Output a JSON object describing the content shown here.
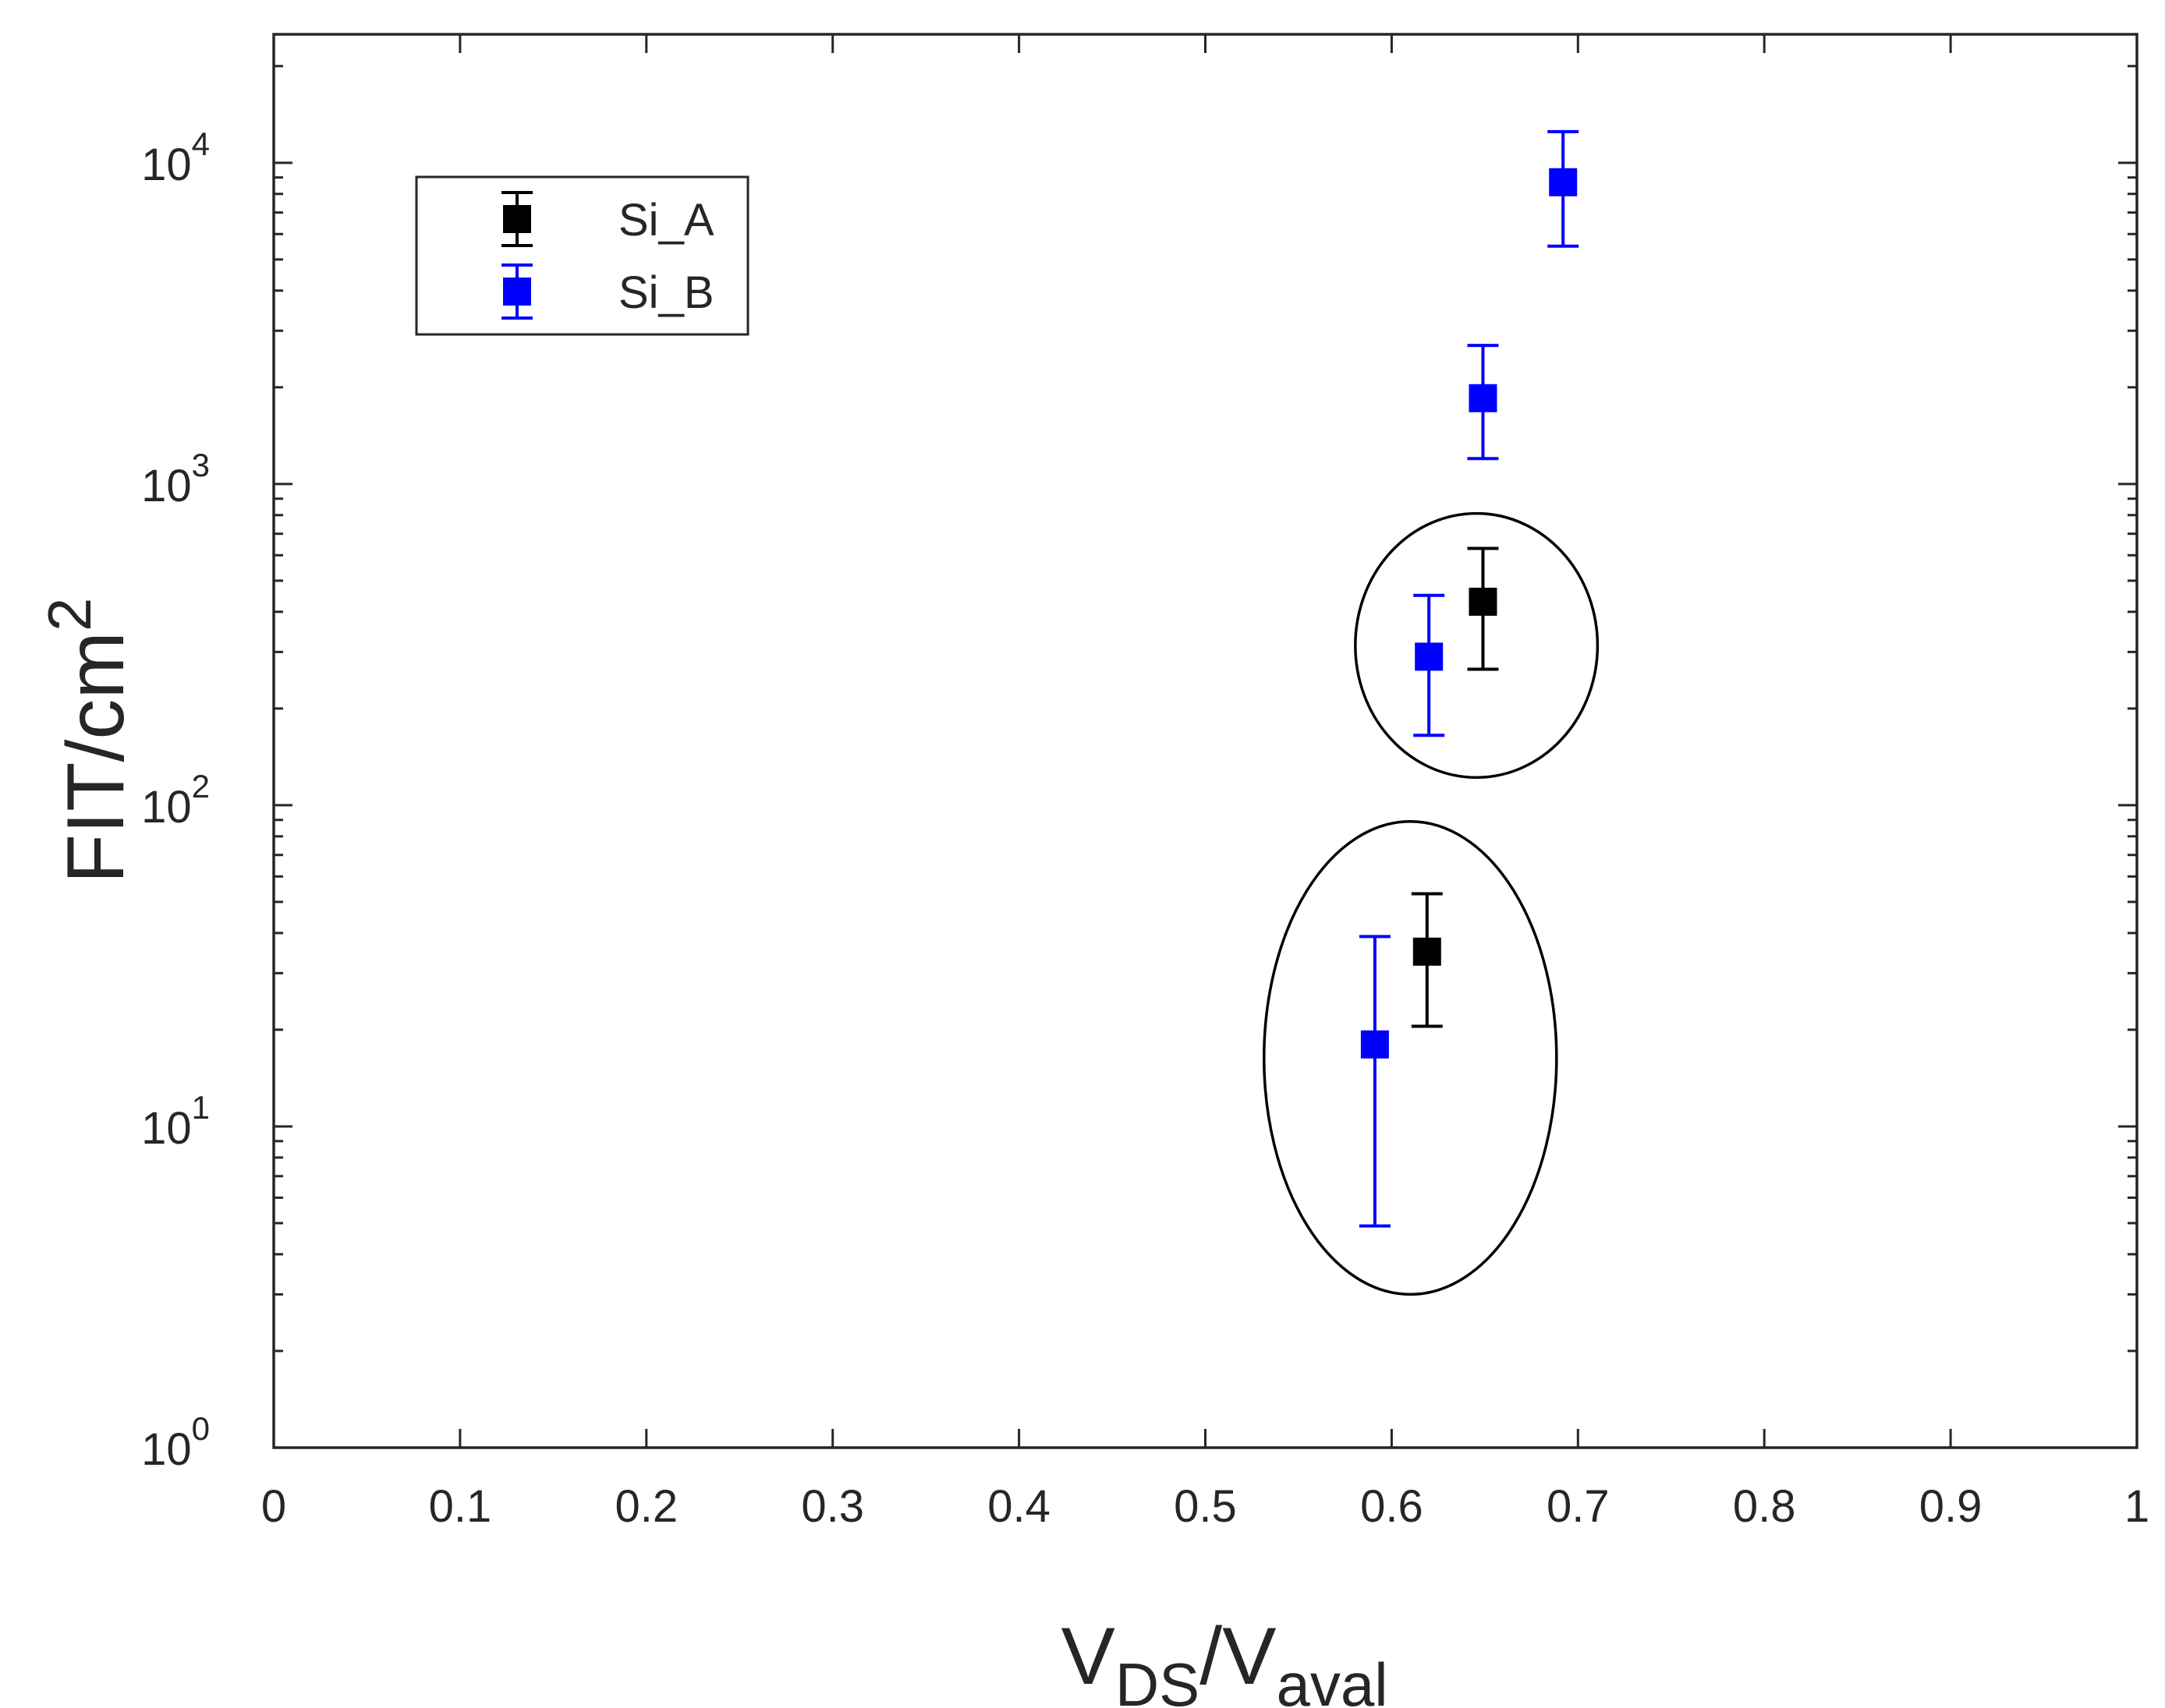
{
  "chart_data": {
    "type": "scatter",
    "title": "",
    "xlabel": {
      "main": "V",
      "sub1": "DS",
      "sep": "/V",
      "sub2": "aval"
    },
    "ylabel": {
      "main": "FIT/cm",
      "sup": "2"
    },
    "xscale": "linear",
    "yscale": "log",
    "xlim": [
      0,
      1
    ],
    "ylim_exp": [
      0,
      4.4
    ],
    "xticks": [
      "0",
      "0.1",
      "0.2",
      "0.3",
      "0.4",
      "0.5",
      "0.6",
      "0.7",
      "0.8",
      "0.9",
      "1"
    ],
    "yticks": [
      {
        "base": "10",
        "exp": "0"
      },
      {
        "base": "10",
        "exp": "1"
      },
      {
        "base": "10",
        "exp": "2"
      },
      {
        "base": "10",
        "exp": "3"
      },
      {
        "base": "10",
        "exp": "4"
      }
    ],
    "legend_position": "top-left",
    "series": [
      {
        "name": "Si_A",
        "color": "#000000",
        "marker": "square",
        "points": [
          {
            "x": 0.619,
            "y": 35,
            "y_low": 20.5,
            "y_high": 53
          },
          {
            "x": 0.649,
            "y": 430,
            "y_low": 265,
            "y_high": 630
          }
        ]
      },
      {
        "name": "Si_B",
        "color": "#0000FF",
        "marker": "square",
        "points": [
          {
            "x": 0.591,
            "y": 18,
            "y_low": 4.9,
            "y_high": 39
          },
          {
            "x": 0.62,
            "y": 290,
            "y_low": 165,
            "y_high": 450
          },
          {
            "x": 0.649,
            "y": 1850,
            "y_low": 1200,
            "y_high": 2700
          },
          {
            "x": 0.692,
            "y": 8700,
            "y_low": 5500,
            "y_high": 12500
          }
        ]
      }
    ],
    "annotations": [
      {
        "shape": "ellipse",
        "cx": 0.6455,
        "cy": 315,
        "rx": 0.065,
        "y_low": 122,
        "y_high": 810
      },
      {
        "shape": "ellipse",
        "cx": 0.61,
        "cy": 16.5,
        "rx": 0.0785,
        "y_low": 3.0,
        "y_high": 89
      }
    ]
  }
}
